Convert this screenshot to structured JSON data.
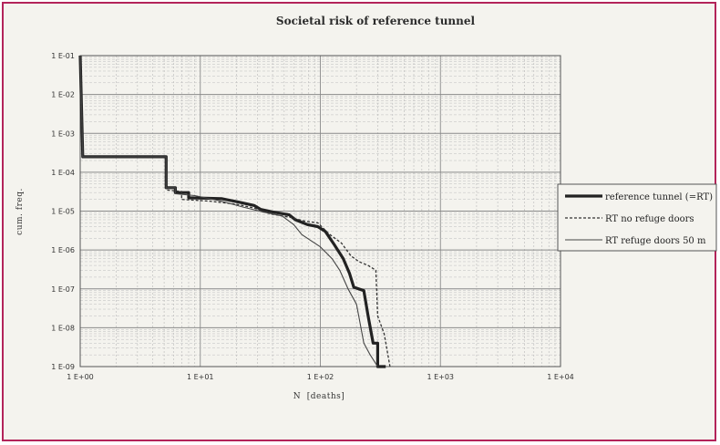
{
  "chart_data": {
    "type": "line",
    "title": "Societal risk of reference tunnel",
    "xlabel": "N  [deaths]",
    "ylabel": "cum. freq.",
    "x_scale": "log",
    "y_scale": "log",
    "xlim": [
      1,
      10000
    ],
    "ylim": [
      1e-09,
      0.1
    ],
    "x_tick_labels": [
      "1 E+00",
      "1 E+01",
      "1 E+02",
      "1 E+03",
      "1 E+04"
    ],
    "y_tick_labels": [
      "1 E-01",
      "1 E-02",
      "1 E-03",
      "1 E-04",
      "1 E-05",
      "1 E-06",
      "1 E-07",
      "1 E-08",
      "1 E-09"
    ],
    "grid": true,
    "legend_position": "right",
    "series": [
      {
        "name": "reference tunnel (=RT)",
        "style": "solid-thick",
        "color": "#222222",
        "points": [
          [
            1.0,
            0.1
          ],
          [
            1.05,
            0.00025
          ],
          [
            5.2,
            0.00025
          ],
          [
            5.2,
            4e-05
          ],
          [
            6.2,
            4e-05
          ],
          [
            6.2,
            3e-05
          ],
          [
            8,
            3e-05
          ],
          [
            8,
            2.2e-05
          ],
          [
            15,
            2.1e-05
          ],
          [
            21,
            1.7e-05
          ],
          [
            28,
            1.4e-05
          ],
          [
            32,
            1.1e-05
          ],
          [
            40,
            9.5e-06
          ],
          [
            55,
            8e-06
          ],
          [
            62,
            6e-06
          ],
          [
            78,
            4.5e-06
          ],
          [
            95,
            4e-06
          ],
          [
            110,
            3e-06
          ],
          [
            130,
            1.4e-06
          ],
          [
            155,
            6e-07
          ],
          [
            175,
            2.5e-07
          ],
          [
            190,
            1.1e-07
          ],
          [
            230,
            9e-08
          ],
          [
            250,
            2e-08
          ],
          [
            275,
            4e-09
          ],
          [
            300,
            4e-09
          ],
          [
            300,
            1e-09
          ],
          [
            350,
            1e-09
          ]
        ]
      },
      {
        "name": "RT no refuge doors",
        "style": "dashed",
        "color": "#333333",
        "points": [
          [
            1.0,
            0.1
          ],
          [
            1.05,
            0.00025
          ],
          [
            5.2,
            0.00025
          ],
          [
            5.2,
            3.5e-05
          ],
          [
            7,
            3.2e-05
          ],
          [
            7,
            2e-05
          ],
          [
            12,
            1.8e-05
          ],
          [
            20,
            1.5e-05
          ],
          [
            28,
            1.2e-05
          ],
          [
            38,
            8.5e-06
          ],
          [
            55,
            7e-06
          ],
          [
            75,
            5.5e-06
          ],
          [
            95,
            5e-06
          ],
          [
            120,
            2.5e-06
          ],
          [
            150,
            1.5e-06
          ],
          [
            180,
            7e-07
          ],
          [
            210,
            5e-07
          ],
          [
            250,
            4e-07
          ],
          [
            290,
            3e-07
          ],
          [
            300,
            2e-08
          ],
          [
            340,
            7e-09
          ],
          [
            380,
            1e-09
          ]
        ]
      },
      {
        "name": "RT refuge doors 50 m",
        "style": "solid-thin",
        "color": "#444444",
        "points": [
          [
            1.0,
            0.1
          ],
          [
            1.05,
            0.00025
          ],
          [
            5.2,
            0.00025
          ],
          [
            5.2,
            4e-05
          ],
          [
            6.2,
            4e-05
          ],
          [
            6.2,
            2.8e-05
          ],
          [
            9,
            2.5e-05
          ],
          [
            15,
            1.8e-05
          ],
          [
            22,
            1.3e-05
          ],
          [
            32,
            9.8e-06
          ],
          [
            48,
            7.5e-06
          ],
          [
            60,
            4.5e-06
          ],
          [
            70,
            2.5e-06
          ],
          [
            82,
            1.8e-06
          ],
          [
            100,
            1.2e-06
          ],
          [
            125,
            6e-07
          ],
          [
            145,
            3e-07
          ],
          [
            170,
            1e-07
          ],
          [
            200,
            4e-08
          ],
          [
            230,
            4e-09
          ],
          [
            260,
            2e-09
          ],
          [
            300,
            1e-09
          ]
        ]
      }
    ]
  }
}
